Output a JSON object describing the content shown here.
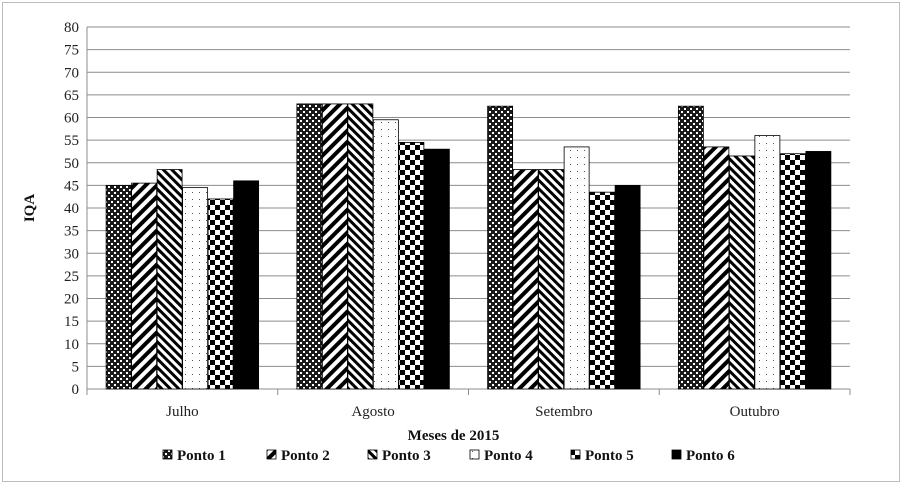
{
  "chart_data": {
    "type": "bar",
    "categories": [
      "Julho",
      "Agosto",
      "Setembro",
      "Outubro"
    ],
    "series": [
      {
        "name": "Ponto 1",
        "values": [
          45.0,
          63.0,
          62.5,
          62.5
        ]
      },
      {
        "name": "Ponto 2",
        "values": [
          45.5,
          63.0,
          48.5,
          53.5
        ]
      },
      {
        "name": "Ponto 3",
        "values": [
          48.5,
          63.0,
          48.5,
          51.5
        ]
      },
      {
        "name": "Ponto 4",
        "values": [
          44.5,
          59.5,
          53.5,
          56.0
        ]
      },
      {
        "name": "Ponto 5",
        "values": [
          42.0,
          54.5,
          43.5,
          52.0
        ]
      },
      {
        "name": "Ponto 6",
        "values": [
          46.0,
          53.0,
          45.0,
          52.5
        ]
      }
    ],
    "title": "",
    "xlabel": "Meses de 2015",
    "ylabel": "IQA",
    "ylim": [
      0,
      80
    ],
    "ytick_step": 5,
    "grid": true,
    "legend_position": "bottom"
  }
}
